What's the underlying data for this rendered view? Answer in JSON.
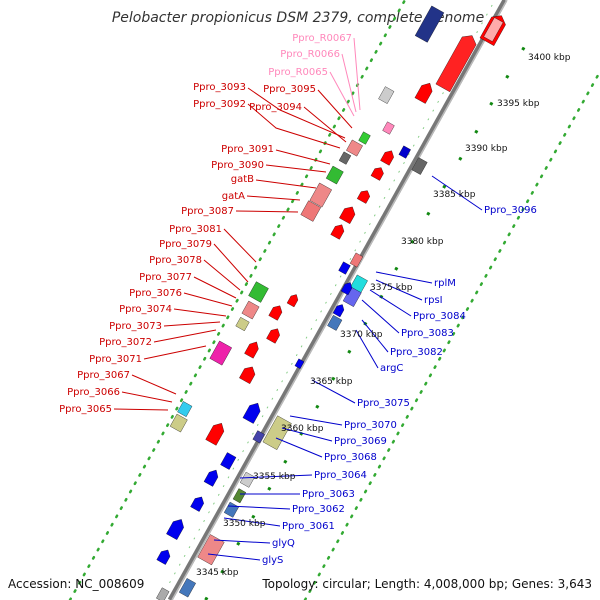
{
  "title": "Pelobacter propionicus DSM 2379, complete genome",
  "accession_label": "Accession: NC_008609",
  "summary": "Topology: circular; Length: 4,008,000 bp; Genes: 3,643",
  "colors": {
    "forward_label": "#cc0000",
    "reverse_label": "#0000cc",
    "rna_label": "#ff88bb",
    "backbone": "#888888",
    "dots": "#33aa33",
    "ticks": "#118811"
  },
  "scale_labels": [
    "3400 kbp",
    "3395 kbp",
    "3390 kbp",
    "3385 kbp",
    "3380 kbp",
    "3375 kbp",
    "3370 kbp",
    "3365 kbp",
    "3360 kbp",
    "3355 kbp",
    "3350 kbp",
    "3345 kbp"
  ],
  "rna_genes": [
    "Ppro_R0067",
    "Ppro_R0066",
    "Ppro_R0065"
  ],
  "forward_genes": [
    "Ppro_3095",
    "Ppro_3093",
    "Ppro_3094",
    "Ppro_3092",
    "Ppro_3091",
    "Ppro_3090",
    "gatB",
    "gatA",
    "Ppro_3087",
    "Ppro_3081",
    "Ppro_3079",
    "Ppro_3078",
    "Ppro_3077",
    "Ppro_3076",
    "Ppro_3074",
    "Ppro_3073",
    "Ppro_3072",
    "Ppro_3071",
    "Ppro_3067",
    "Ppro_3066",
    "Ppro_3065"
  ],
  "reverse_genes": [
    "Ppro_3096",
    "rplM",
    "rpsI",
    "Ppro_3084",
    "Ppro_3083",
    "Ppro_3082",
    "argC",
    "Ppro_3075",
    "Ppro_3070",
    "Ppro_3069",
    "Ppro_3068",
    "Ppro_3064",
    "Ppro_3063",
    "Ppro_3062",
    "Ppro_3061",
    "glyQ",
    "glyS"
  ]
}
